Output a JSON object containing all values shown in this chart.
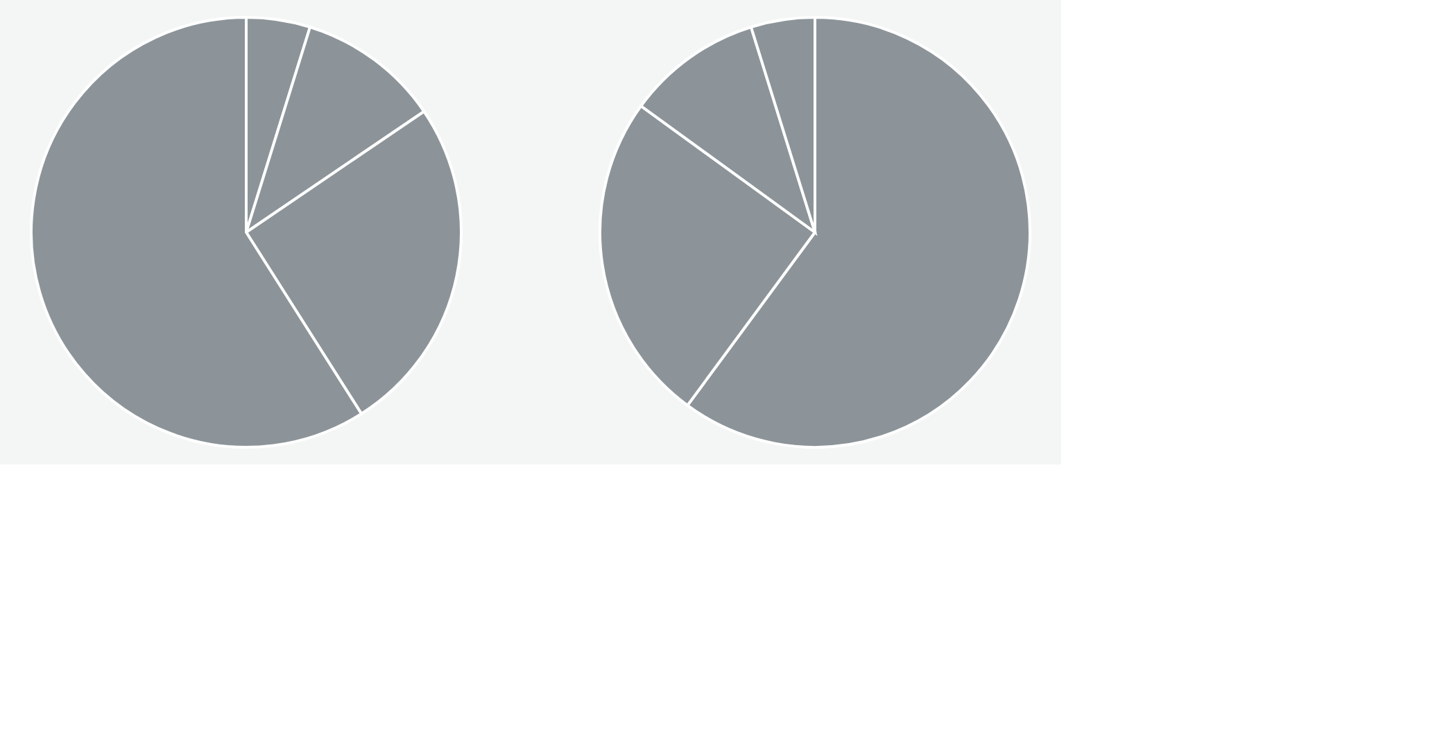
{
  "chart_data": [
    {
      "type": "pie",
      "categories": [
        null,
        null,
        null,
        null
      ],
      "values": [
        4.8,
        10.7,
        25.5,
        59.0
      ],
      "colors": [
        "#8c9499",
        "#8c9499",
        "#8c9499",
        "#8c9499"
      ],
      "legend": false
    },
    {
      "type": "pie",
      "categories": [
        null,
        null,
        null,
        null
      ],
      "values": [
        60.1,
        24.9,
        10.2,
        4.8
      ],
      "colors": [
        "#8c9499",
        "#8c9499",
        "#8c9499",
        "#8c9499"
      ],
      "legend": false
    }
  ]
}
